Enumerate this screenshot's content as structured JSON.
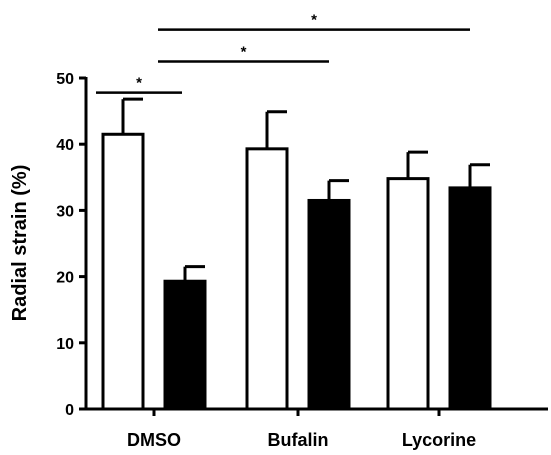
{
  "chart_data": {
    "type": "bar",
    "title": "",
    "xlabel": "",
    "ylabel": "Radial strain (%)",
    "ylim": [
      0,
      50
    ],
    "yticks": [
      0,
      10,
      20,
      30,
      40,
      50
    ],
    "grid": false,
    "legend": "none",
    "categories": [
      "DMSO",
      "Bufalin",
      "Lycorine"
    ],
    "series": [
      {
        "fill": "#ffffff",
        "values": [
          41.5,
          39.3,
          34.8
        ],
        "errors": [
          5.3,
          5.6,
          4.0
        ]
      },
      {
        "fill": "#000000",
        "values": [
          19.3,
          31.5,
          33.4
        ],
        "errors": [
          2.2,
          3.0,
          3.5
        ]
      }
    ],
    "annotations": [
      {
        "text": "*",
        "from": {
          "category": 0,
          "series": 0
        },
        "to": {
          "category": 0,
          "series": 1
        },
        "y": 47.8
      },
      {
        "text": "*",
        "from": {
          "category": 0,
          "series": 1
        },
        "to": {
          "category": 1,
          "series": 1
        },
        "y": 52.5
      },
      {
        "text": "*",
        "from": {
          "category": 0,
          "series": 1
        },
        "to": {
          "category": 2,
          "series": 1
        },
        "y": 57.3
      }
    ]
  }
}
